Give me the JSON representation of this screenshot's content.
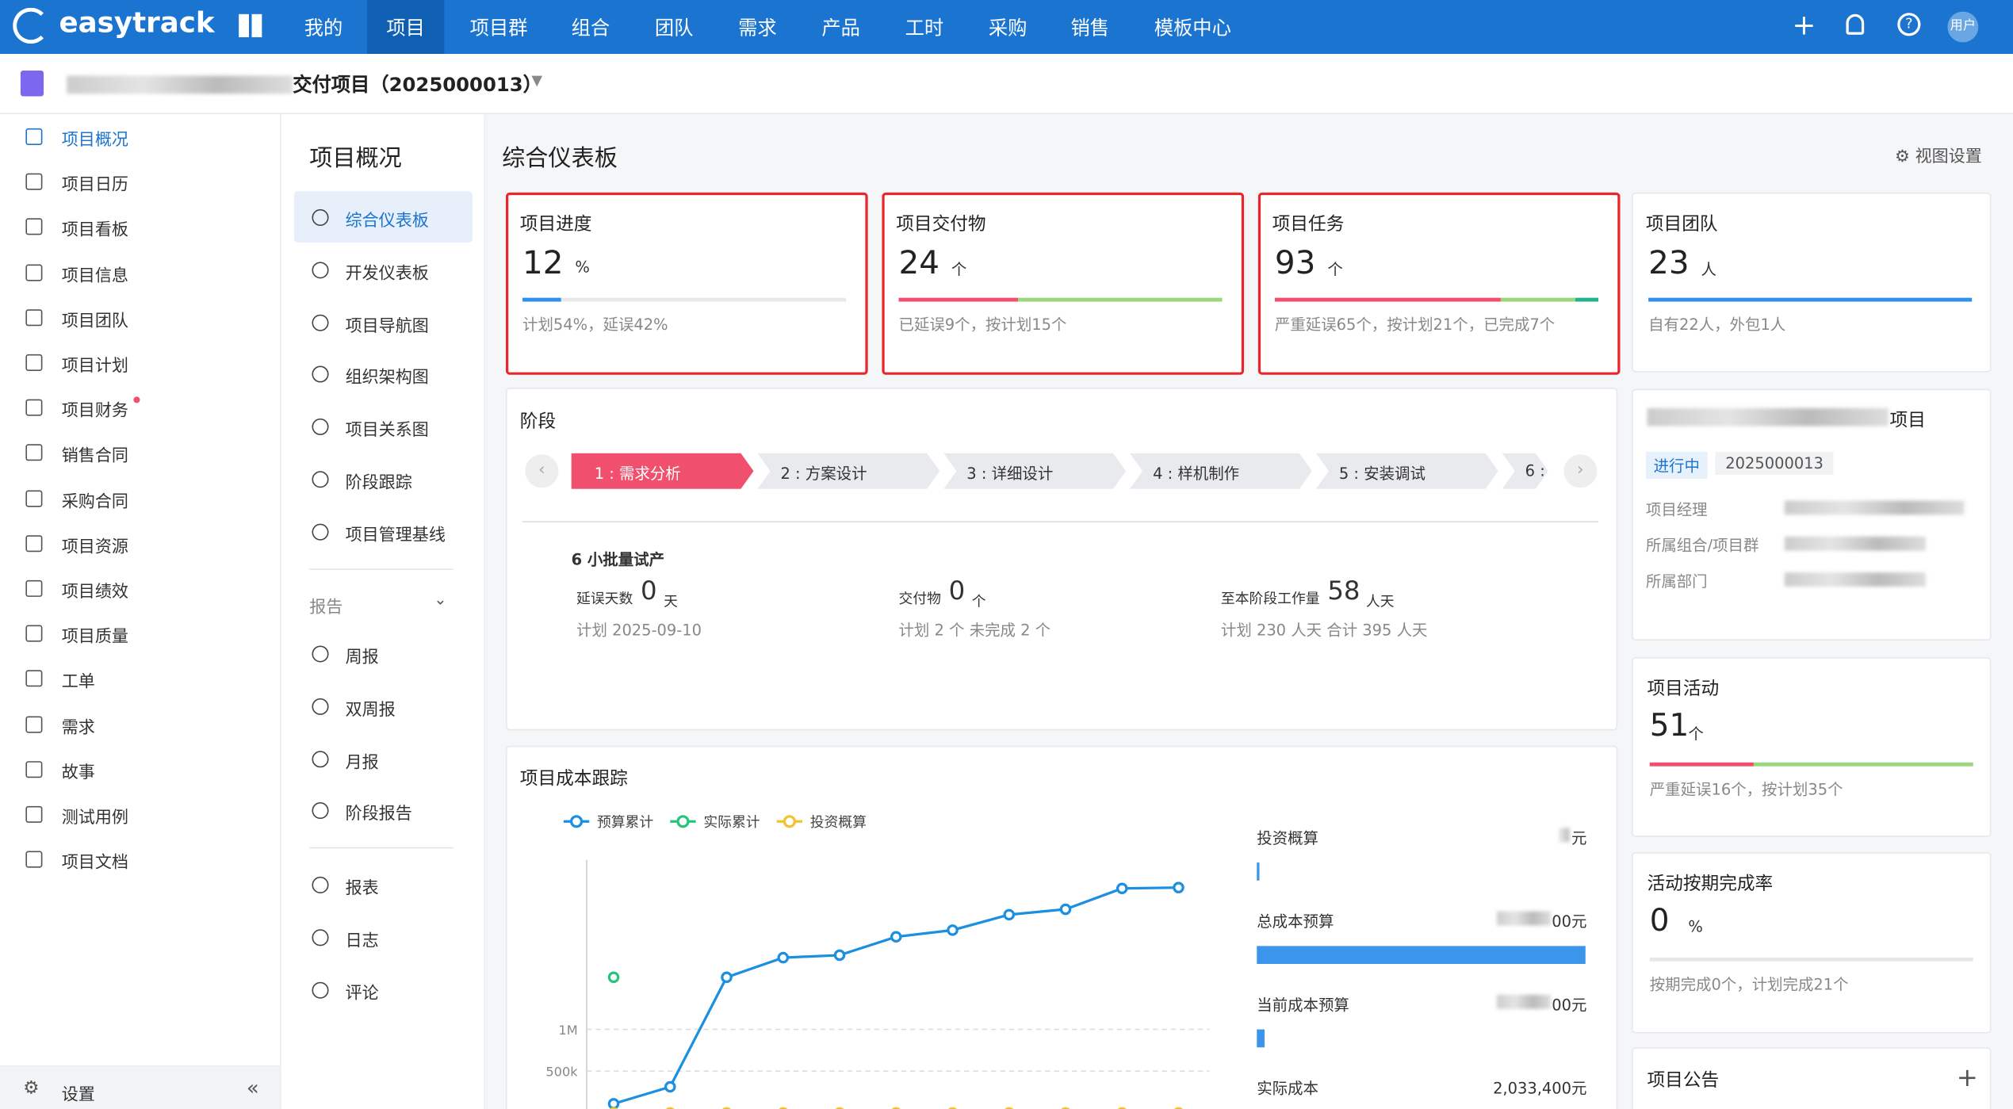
{
  "topbar": {
    "logo": "easytrack",
    "nav": [
      "我的",
      "项目",
      "项目群",
      "组合",
      "团队",
      "需求",
      "产品",
      "工时",
      "采购",
      "销售",
      "模板中心"
    ],
    "user": "用户"
  },
  "project": {
    "title": "交付项目（2025000013）"
  },
  "sidebar": {
    "items": [
      "项目概况",
      "项目日历",
      "项目看板",
      "项目信息",
      "项目团队",
      "项目计划",
      "项目财务",
      "销售合同",
      "采购合同",
      "项目资源",
      "项目绩效",
      "项目质量",
      "工单",
      "需求",
      "故事",
      "测试用例",
      "项目文档"
    ],
    "footer": "设置"
  },
  "subnav": {
    "title": "项目概况",
    "items": [
      "综合仪表板",
      "开发仪表板",
      "项目导航图",
      "组织架构图",
      "项目关系图",
      "阶段跟踪",
      "项目管理基线"
    ],
    "section": "报告",
    "reports": [
      "周报",
      "双周报",
      "月报",
      "阶段报告"
    ],
    "others": [
      "报表",
      "日志",
      "评论"
    ]
  },
  "dashboard": {
    "title": "综合仪表板",
    "settings": "视图设置"
  },
  "cards": [
    {
      "title": "项目进度",
      "value": 12,
      "unit": "%",
      "note": "计划54%，延误42%"
    },
    {
      "title": "项目交付物",
      "value": 24,
      "unit": "个",
      "note": "已延误9个，按计划15个"
    },
    {
      "title": "项目任务",
      "value": 93,
      "unit": "个",
      "note": "严重延误65个，按计划21个，已完成7个"
    },
    {
      "title": "项目团队",
      "value": 23,
      "unit": "人",
      "note": "自有22人，外包1人"
    }
  ],
  "stages": {
    "title": "阶段",
    "items": [
      "1 : 需求分析",
      "2 : 方案设计",
      "3 : 详细设计",
      "4 : 样机制作",
      "5 : 安装调试",
      "6 : "
    ]
  },
  "stage_detail": {
    "name": "6 小批量试产",
    "delay_label": "延误天数",
    "delay": 0,
    "delay_unit": "天",
    "plan": "计划 2025-09-10",
    "deliv_label": "交付物",
    "deliv": 0,
    "deliv_unit": "个",
    "deliv_note": "计划 2 个  未完成  2 个",
    "work_label": "至本阶段工作量",
    "work": 58,
    "work_unit": "人天",
    "work_note": "计划  230  人天 合计  395  人天"
  },
  "info": {
    "name": "项目",
    "status": "进行中",
    "code": "2025000013",
    "labels": [
      "项目经理",
      "所属组合/项目群",
      "所属部门"
    ]
  },
  "activity": [
    {
      "title": "项目活动",
      "value": 51,
      "unit": "个",
      "note": "严重延误16个，按计划35个"
    },
    {
      "title": "活动按期完成率",
      "value": 0,
      "unit": "%",
      "note": "按期完成0个，计划完成21个"
    }
  ],
  "notice": {
    "title": "项目公告"
  },
  "cost": {
    "title": "项目成本跟踪",
    "summary": [
      {
        "label": "投资概算",
        "value": "元"
      },
      {
        "label": "总成本预算",
        "value": "00元"
      },
      {
        "label": "当前成本预算",
        "value": "00元"
      },
      {
        "label": "实际成本",
        "value": "2,033,400元"
      }
    ]
  },
  "chart_data": {
    "type": "line",
    "categories": [
      null,
      null,
      null,
      null,
      null,
      null,
      null,
      null,
      null,
      null,
      null
    ],
    "series": [
      {
        "name": "预算累计",
        "color": "#1b8fe0",
        "values": [
          109000,
          312000,
          1625000,
          1860000,
          1890000,
          2110000,
          2190000,
          2375000,
          2440000,
          2690000,
          2700000
        ]
      },
      {
        "name": "实际累计",
        "color": "#27c47a",
        "values": [
          1625000,
          null,
          null,
          null,
          null,
          null,
          null,
          null,
          null,
          null,
          null
        ]
      },
      {
        "name": "投资概算",
        "color": "#f2c230",
        "values": [
          0,
          0,
          0,
          0,
          0,
          0,
          0,
          0,
          0,
          0,
          0
        ]
      }
    ],
    "ylim": [
      0,
      3000000
    ],
    "yticks": [
      {
        "value": 500000,
        "label": "500k"
      },
      {
        "value": 1000000,
        "label": "1M"
      }
    ],
    "grid": true
  }
}
